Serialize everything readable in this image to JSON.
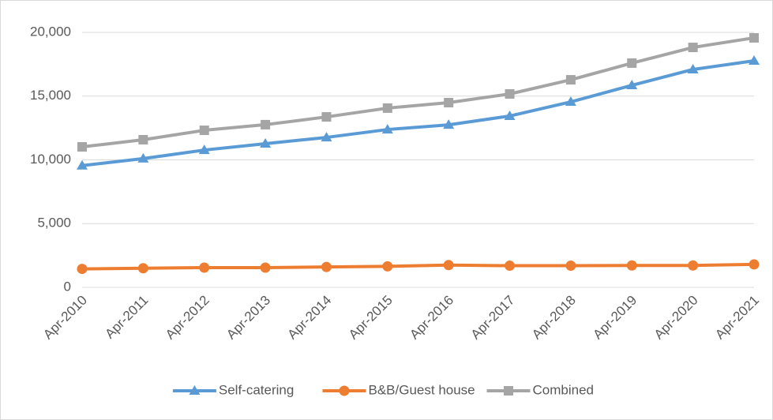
{
  "chart_data": {
    "type": "line",
    "categories": [
      "Apr-2010",
      "Apr-2011",
      "Apr-2012",
      "Apr-2013",
      "Apr-2014",
      "Apr-2015",
      "Apr-2016",
      "Apr-2017",
      "Apr-2018",
      "Apr-2019",
      "Apr-2020",
      "Apr-2021"
    ],
    "series": [
      {
        "name": "Self-catering",
        "color": "#5b9bd5",
        "marker": "triangle",
        "values": [
          9550,
          10100,
          10770,
          11270,
          11760,
          12380,
          12750,
          13440,
          14550,
          15850,
          17090,
          17770
        ]
      },
      {
        "name": "B&B/Guest house",
        "color": "#ed7d31",
        "marker": "circle",
        "values": [
          1450,
          1500,
          1550,
          1550,
          1600,
          1650,
          1750,
          1700,
          1700,
          1720,
          1720,
          1800
        ]
      },
      {
        "name": "Combined",
        "color": "#a5a5a5",
        "marker": "square",
        "values": [
          11020,
          11580,
          12320,
          12760,
          13370,
          14060,
          14490,
          15170,
          16280,
          17590,
          18820,
          19570
        ]
      }
    ],
    "ylim": [
      0,
      20000
    ],
    "yticks": [
      0,
      {
        "value": 5000,
        "label": "5,000"
      },
      {
        "value": 10000,
        "label": "10,000"
      },
      {
        "value": 15000,
        "label": "15,000"
      },
      {
        "value": 20000,
        "label": "20,000"
      }
    ],
    "grid": true,
    "legend": "bottom"
  }
}
